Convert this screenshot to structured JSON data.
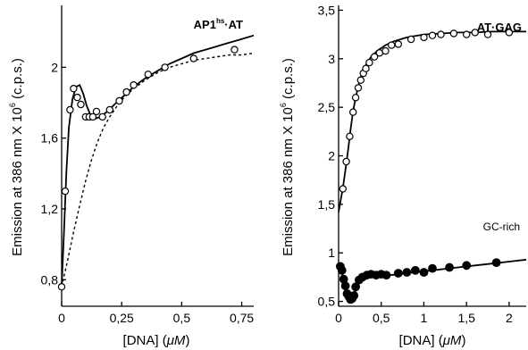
{
  "chart_data": [
    {
      "type": "scatter",
      "title_main": "AP1",
      "title_sup": "hs",
      "title_dot": "·",
      "title_rest": "AT",
      "xlabel_pre": "[DNA] (",
      "xlabel_unit": "μM",
      "xlabel_post": ")",
      "ylabel": "Emission at 386 nm X 10",
      "ylabel_exp": "6",
      "ylabel_post": " (c.p.s.)",
      "xlim": [
        0,
        0.8
      ],
      "ylim": [
        0.65,
        2.35
      ],
      "xticks": [
        0,
        0.25,
        0.5,
        0.75
      ],
      "xtick_labels": [
        "0",
        "0,25",
        "0,5",
        "0,75"
      ],
      "yticks": [
        0.8,
        1.2,
        1.6,
        2.0
      ],
      "ytick_labels": [
        "0,8",
        "1,2",
        "1,6",
        "2"
      ],
      "series": [
        {
          "marker": "open-circle",
          "x": [
            0,
            0.015,
            0.035,
            0.05,
            0.065,
            0.08,
            0.1,
            0.115,
            0.13,
            0.145,
            0.17,
            0.2,
            0.24,
            0.27,
            0.3,
            0.36,
            0.43,
            0.55,
            0.72
          ],
          "y": [
            0.76,
            1.3,
            1.76,
            1.88,
            1.83,
            1.79,
            1.72,
            1.72,
            1.72,
            1.75,
            1.72,
            1.76,
            1.81,
            1.86,
            1.9,
            1.96,
            2.0,
            2.05,
            2.1
          ]
        },
        {
          "line": "solid",
          "x": [
            0,
            0.01,
            0.02,
            0.03,
            0.045,
            0.06,
            0.075,
            0.09,
            0.105,
            0.12,
            0.14,
            0.16,
            0.19,
            0.22,
            0.26,
            0.3,
            0.35,
            0.4,
            0.45,
            0.5,
            0.55,
            0.6,
            0.65,
            0.7,
            0.75,
            0.8
          ],
          "y": [
            0.76,
            1.08,
            1.42,
            1.66,
            1.82,
            1.89,
            1.9,
            1.85,
            1.78,
            1.73,
            1.71,
            1.72,
            1.75,
            1.79,
            1.84,
            1.89,
            1.94,
            1.98,
            2.02,
            2.05,
            2.08,
            2.1,
            2.12,
            2.14,
            2.16,
            2.18
          ]
        },
        {
          "line": "dashed",
          "x": [
            0,
            0.025,
            0.05,
            0.075,
            0.1,
            0.125,
            0.15,
            0.175,
            0.2,
            0.23,
            0.26,
            0.3,
            0.35,
            0.4,
            0.45,
            0.5,
            0.55,
            0.6,
            0.65,
            0.7,
            0.75,
            0.8
          ],
          "y": [
            0.76,
            0.91,
            1.07,
            1.22,
            1.36,
            1.48,
            1.58,
            1.66,
            1.72,
            1.78,
            1.83,
            1.88,
            1.93,
            1.97,
            2.0,
            2.02,
            2.04,
            2.05,
            2.06,
            2.07,
            2.07,
            2.08
          ]
        }
      ]
    },
    {
      "type": "scatter",
      "title": "AT·GAG",
      "annotation": "GC-rich",
      "xlabel_pre": "[DNA] (",
      "xlabel_unit": "μM",
      "xlabel_post": ")",
      "ylabel": "Emission at 386 nm X 10",
      "ylabel_exp": "6",
      "ylabel_post": " (c.p.s.)",
      "xlim": [
        0,
        2.2
      ],
      "ylim": [
        0.45,
        3.55
      ],
      "xticks": [
        0,
        0.5,
        1,
        1.5,
        2
      ],
      "xtick_labels": [
        "0",
        "0,5",
        "1",
        "1,5",
        "2"
      ],
      "yticks": [
        0.5,
        1,
        1.5,
        2,
        2.5,
        3,
        3.5
      ],
      "ytick_labels": [
        "0,5",
        "1",
        "1,5",
        "2",
        "2,5",
        "3",
        "3,5"
      ],
      "series": [
        {
          "marker": "open-circle",
          "x": [
            0.05,
            0.09,
            0.13,
            0.17,
            0.2,
            0.23,
            0.26,
            0.29,
            0.32,
            0.36,
            0.42,
            0.48,
            0.55,
            0.62,
            0.7,
            0.85,
            1.0,
            1.1,
            1.2,
            1.35,
            1.5,
            1.6,
            1.75,
            2.0
          ],
          "y": [
            1.66,
            1.94,
            2.2,
            2.45,
            2.6,
            2.7,
            2.78,
            2.85,
            2.9,
            2.96,
            3.02,
            3.06,
            3.08,
            3.14,
            3.15,
            3.2,
            3.22,
            3.24,
            3.25,
            3.26,
            3.25,
            3.27,
            3.25,
            3.27
          ]
        },
        {
          "line": "solid",
          "x": [
            0,
            0.02,
            0.05,
            0.08,
            0.11,
            0.14,
            0.17,
            0.2,
            0.24,
            0.28,
            0.33,
            0.38,
            0.45,
            0.55,
            0.65,
            0.8,
            1.0,
            1.2,
            1.4,
            1.6,
            1.8,
            2.0,
            2.2
          ],
          "y": [
            1.42,
            1.52,
            1.67,
            1.85,
            2.05,
            2.27,
            2.46,
            2.6,
            2.75,
            2.86,
            2.95,
            3.02,
            3.08,
            3.14,
            3.18,
            3.22,
            3.25,
            3.26,
            3.27,
            3.27,
            3.28,
            3.28,
            3.28
          ]
        },
        {
          "marker": "filled-circle",
          "x": [
            0.02,
            0.04,
            0.06,
            0.08,
            0.1,
            0.12,
            0.14,
            0.16,
            0.18,
            0.2,
            0.24,
            0.28,
            0.33,
            0.38,
            0.44,
            0.5,
            0.56,
            0.7,
            0.8,
            0.9,
            1.0,
            1.1,
            1.3,
            1.5,
            1.85
          ],
          "y": [
            0.86,
            0.82,
            0.73,
            0.66,
            0.58,
            0.55,
            0.52,
            0.53,
            0.56,
            0.65,
            0.72,
            0.75,
            0.77,
            0.78,
            0.77,
            0.78,
            0.77,
            0.79,
            0.8,
            0.82,
            0.8,
            0.84,
            0.85,
            0.87,
            0.9
          ]
        },
        {
          "line": "solid",
          "x": [
            0,
            0.03,
            0.06,
            0.09,
            0.12,
            0.15,
            0.18,
            0.21,
            0.25,
            0.3,
            0.36,
            0.45,
            0.6,
            0.8,
            1.0,
            1.2,
            1.4,
            1.6,
            1.8,
            2.0,
            2.2
          ],
          "y": [
            0.9,
            0.82,
            0.71,
            0.62,
            0.56,
            0.53,
            0.56,
            0.64,
            0.7,
            0.73,
            0.75,
            0.76,
            0.77,
            0.79,
            0.81,
            0.83,
            0.85,
            0.87,
            0.89,
            0.91,
            0.93
          ]
        }
      ]
    }
  ]
}
